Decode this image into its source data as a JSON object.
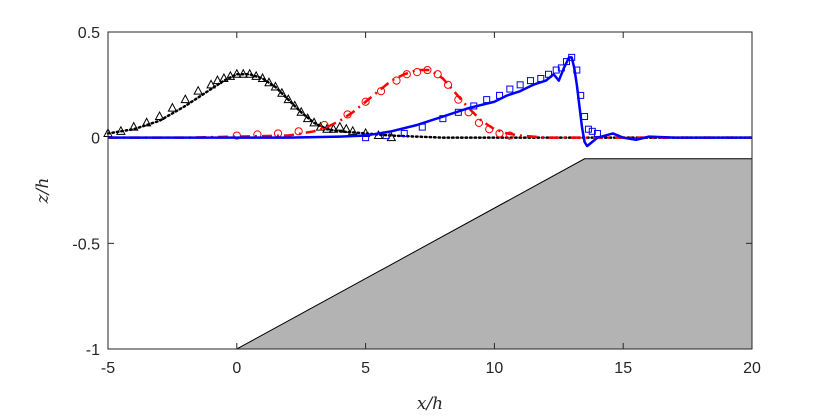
{
  "chart_data": {
    "type": "line",
    "title": "",
    "xlabel": "x/h",
    "ylabel": "z/h",
    "xlim": [
      -5,
      20
    ],
    "ylim": [
      -1,
      0.5
    ],
    "xticks": [
      -5,
      0,
      5,
      10,
      15,
      20
    ],
    "xtick_labels": [
      "-5",
      "0",
      "5",
      "10",
      "15",
      "20"
    ],
    "yticks": [
      -1,
      -0.5,
      0,
      0.5
    ],
    "ytick_labels": [
      "-1",
      "-0.5",
      "0",
      "0.5"
    ],
    "grid": false,
    "legend": "none",
    "bathymetry": {
      "x": [
        -5,
        0,
        13.5,
        20
      ],
      "z": [
        -1,
        -1,
        -0.1,
        -0.1
      ],
      "fill": "#b3b3b3"
    },
    "series": [
      {
        "style": "black-dotted",
        "color": "#000000",
        "x": [
          -5,
          -4,
          -3,
          -2,
          -1,
          -0.5,
          0,
          0.5,
          1,
          1.5,
          2,
          2.5,
          3,
          3.5,
          4,
          4.5,
          5,
          6,
          7,
          8,
          10,
          12,
          14,
          16,
          18,
          20
        ],
        "y": [
          0.02,
          0.04,
          0.08,
          0.15,
          0.23,
          0.27,
          0.3,
          0.3,
          0.28,
          0.24,
          0.18,
          0.12,
          0.07,
          0.04,
          0.03,
          0.025,
          0.02,
          0.01,
          0.005,
          0.0,
          0.0,
          0.0,
          0.0,
          0.0,
          0.0,
          0.0
        ]
      },
      {
        "style": "black-triangle-markers",
        "color": "#000000",
        "x": [
          -5,
          -4.5,
          -4,
          -3.5,
          -3,
          -2.5,
          -2,
          -1.5,
          -1,
          -0.75,
          -0.5,
          -0.25,
          0,
          0.25,
          0.5,
          0.75,
          1,
          1.25,
          1.5,
          1.75,
          2,
          2.25,
          2.5,
          2.75,
          3,
          3.25,
          3.5,
          3.75,
          4,
          4.25,
          4.5,
          5,
          5.5,
          6
        ],
        "y": [
          0.02,
          0.03,
          0.05,
          0.07,
          0.1,
          0.14,
          0.18,
          0.22,
          0.25,
          0.27,
          0.28,
          0.29,
          0.3,
          0.3,
          0.3,
          0.29,
          0.28,
          0.26,
          0.24,
          0.21,
          0.18,
          0.15,
          0.12,
          0.09,
          0.07,
          0.05,
          0.04,
          0.04,
          0.05,
          0.04,
          0.03,
          0.02,
          0.01,
          0.0
        ]
      },
      {
        "style": "red-dashdot",
        "color": "#ff0000",
        "x": [
          -5,
          -2,
          0,
          2,
          3,
          3.5,
          4,
          4.5,
          5,
          5.5,
          6,
          6.5,
          7,
          7.5,
          8,
          8.5,
          9,
          9.5,
          10,
          10.5,
          11,
          12,
          13,
          14,
          15,
          16,
          18,
          20
        ],
        "y": [
          0.0,
          0.0,
          0.005,
          0.01,
          0.03,
          0.05,
          0.08,
          0.12,
          0.17,
          0.22,
          0.27,
          0.3,
          0.32,
          0.32,
          0.28,
          0.21,
          0.14,
          0.08,
          0.04,
          0.02,
          0.01,
          0.0,
          0.0,
          0.0,
          0.0,
          0.0,
          0.0,
          0.0
        ]
      },
      {
        "style": "red-circle-markers",
        "color": "#ff0000",
        "x": [
          0,
          0.8,
          1.6,
          2.4,
          3.4,
          4.3,
          5,
          5.6,
          6.2,
          6.6,
          7,
          7.4,
          7.8,
          8.2,
          8.6,
          9,
          9.4,
          9.8,
          10.2,
          10.6
        ],
        "y": [
          0.01,
          0.015,
          0.02,
          0.03,
          0.06,
          0.11,
          0.17,
          0.22,
          0.27,
          0.3,
          0.31,
          0.32,
          0.3,
          0.25,
          0.18,
          0.12,
          0.07,
          0.04,
          0.02,
          0.01
        ]
      },
      {
        "style": "blue-solid",
        "color": "#0000ff",
        "x": [
          -5,
          -2,
          0,
          2,
          4,
          5,
          5.5,
          6,
          7,
          8,
          9,
          10,
          10.5,
          11,
          11.5,
          12,
          12.3,
          12.5,
          12.7,
          12.9,
          13.0,
          13.1,
          13.2,
          13.3,
          13.4,
          13.5,
          13.6,
          13.8,
          14.0,
          14.3,
          14.6,
          15,
          15.5,
          16,
          17,
          18,
          20
        ],
        "y": [
          0.0,
          0.0,
          0.0,
          0.0,
          0.005,
          0.01,
          0.02,
          0.03,
          0.06,
          0.1,
          0.14,
          0.17,
          0.2,
          0.22,
          0.25,
          0.27,
          0.3,
          0.27,
          0.33,
          0.38,
          0.38,
          0.33,
          0.25,
          0.15,
          0.05,
          -0.02,
          -0.04,
          -0.02,
          0.0,
          0.01,
          0.02,
          0.0,
          -0.01,
          0.005,
          0.0,
          0.0,
          0.0
        ]
      },
      {
        "style": "blue-square-markers",
        "color": "#0000ff",
        "x": [
          5,
          5.8,
          6.5,
          7.2,
          8,
          8.6,
          9.2,
          9.7,
          10.2,
          10.6,
          11,
          11.4,
          11.8,
          12.1,
          12.4,
          12.6,
          12.8,
          13.0,
          13.2,
          13.35,
          13.5,
          13.65,
          13.8,
          14.0
        ],
        "y": [
          0.0,
          0.01,
          0.02,
          0.05,
          0.09,
          0.12,
          0.15,
          0.18,
          0.2,
          0.23,
          0.25,
          0.27,
          0.28,
          0.3,
          0.32,
          0.33,
          0.36,
          0.38,
          0.32,
          0.2,
          0.1,
          0.04,
          0.03,
          0.02
        ]
      }
    ]
  }
}
